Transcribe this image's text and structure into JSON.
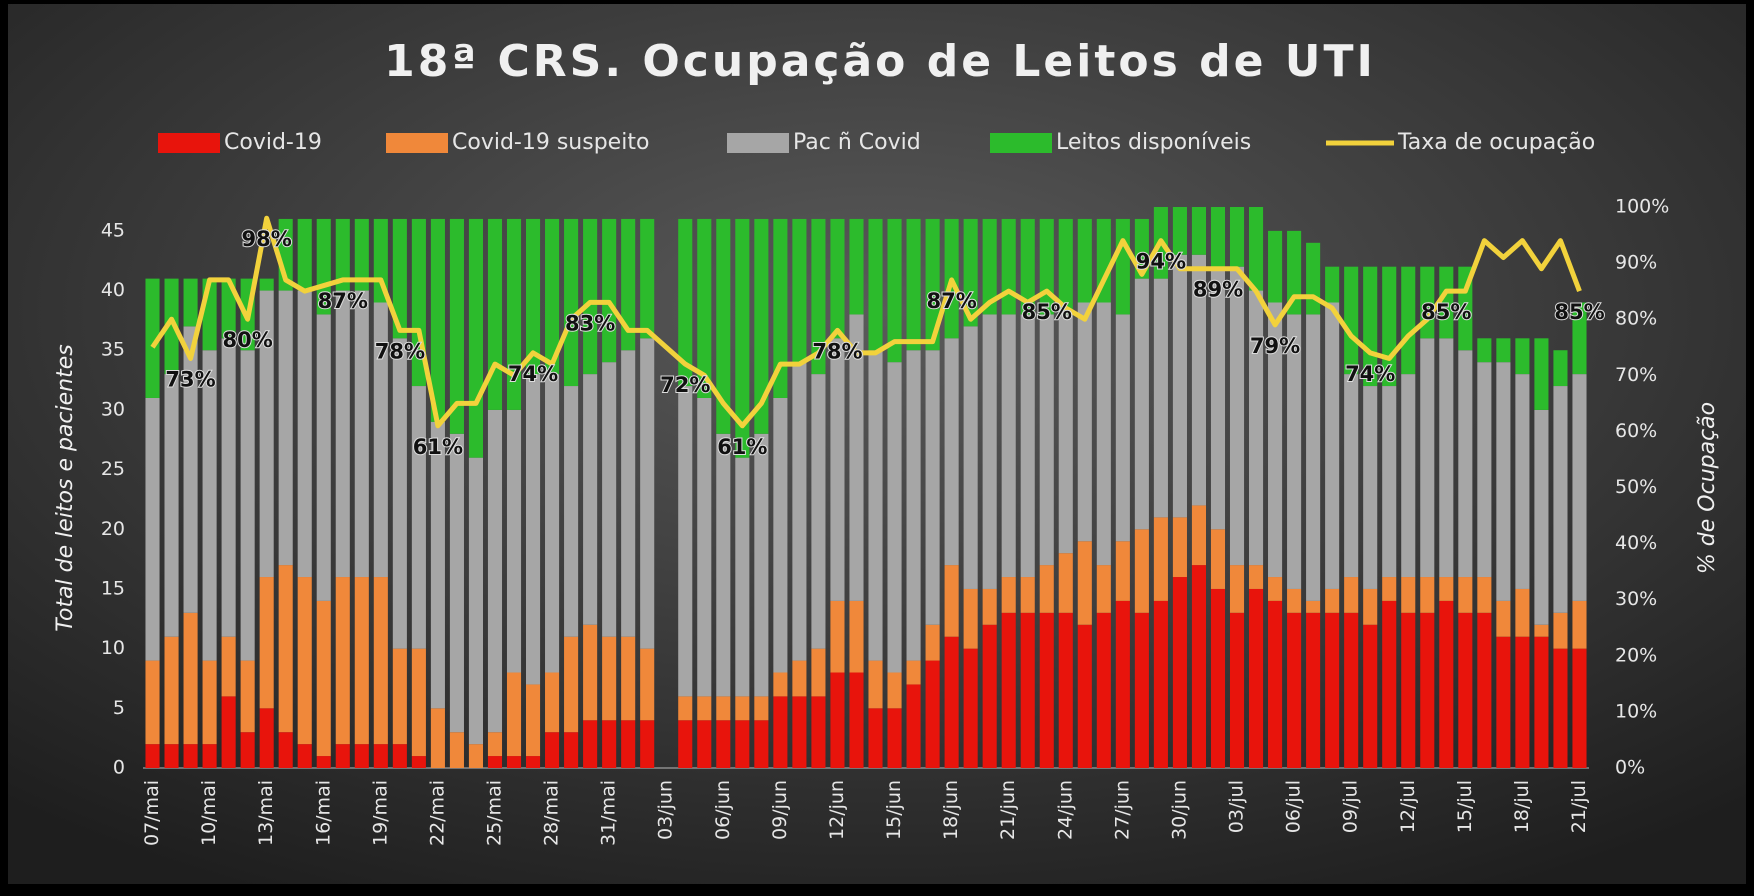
{
  "chart_data": {
    "type": "stacked_bar_line",
    "title": "18ª CRS. Ocupação de Leitos de UTI",
    "y_label": "Total de leitos e pacientes",
    "y2_label": "% de Ocupação",
    "categories": [
      "07/mai",
      null,
      null,
      "10/mai",
      null,
      null,
      "13/mai",
      null,
      null,
      "16/mai",
      null,
      null,
      "19/mai",
      null,
      null,
      "22/mai",
      null,
      null,
      "25/mai",
      null,
      null,
      "28/mai",
      null,
      null,
      "31/mai",
      null,
      null,
      "03/jun",
      null,
      null,
      "06/jun",
      null,
      null,
      "09/jun",
      null,
      null,
      "12/jun",
      null,
      null,
      "15/jun",
      null,
      null,
      "18/jun",
      null,
      null,
      "21/jun",
      null,
      null,
      "24/jun",
      null,
      null,
      "27/jun",
      null,
      null,
      "30/jun",
      null,
      null,
      "03/jul",
      null,
      null,
      "06/jul",
      null,
      null,
      "09/jul",
      null,
      null,
      "12/jul",
      null,
      null,
      "15/jul",
      null,
      null,
      "18/jul",
      null,
      null,
      "21/jul"
    ],
    "series": [
      {
        "name": "Covid-19",
        "color": "#e8140c",
        "values": [
          2,
          2,
          2,
          2,
          6,
          3,
          5,
          3,
          2,
          1,
          2,
          2,
          2,
          2,
          1,
          0,
          0,
          0,
          1,
          1,
          1,
          3,
          3,
          4,
          4,
          4,
          4,
          null,
          4,
          4,
          4,
          4,
          4,
          6,
          6,
          6,
          8,
          8,
          5,
          5,
          7,
          9,
          11,
          10,
          12,
          13,
          13,
          13,
          13,
          12,
          13,
          14,
          13,
          14,
          16,
          17,
          15,
          13,
          15,
          14,
          13,
          13,
          13,
          13,
          12,
          14,
          13,
          13,
          14,
          13,
          13,
          11,
          11,
          11,
          10,
          10
        ]
      },
      {
        "name": "Covid-19 suspeito",
        "color": "#f0883a",
        "values": [
          7,
          9,
          11,
          7,
          5,
          6,
          11,
          14,
          14,
          13,
          14,
          14,
          14,
          8,
          9,
          5,
          3,
          2,
          2,
          7,
          6,
          5,
          8,
          8,
          7,
          7,
          6,
          null,
          2,
          2,
          2,
          2,
          2,
          2,
          3,
          4,
          6,
          6,
          4,
          3,
          2,
          3,
          6,
          5,
          3,
          3,
          3,
          4,
          5,
          7,
          4,
          5,
          7,
          7,
          5,
          5,
          5,
          4,
          2,
          2,
          2,
          1,
          2,
          3,
          3,
          2,
          3,
          3,
          2,
          3,
          3,
          3,
          4,
          1,
          3,
          4
        ]
      },
      {
        "name": "Pac ñ Covid",
        "color": "#a6a6a6",
        "values": [
          22,
          22,
          24,
          26,
          25,
          26,
          24,
          23,
          24,
          24,
          24,
          24,
          23,
          26,
          22,
          24,
          25,
          24,
          27,
          22,
          26,
          25,
          21,
          21,
          23,
          24,
          26,
          null,
          26,
          25,
          22,
          20,
          22,
          23,
          25,
          23,
          22,
          24,
          26,
          26,
          26,
          23,
          19,
          22,
          23,
          22,
          22,
          21,
          20,
          20,
          22,
          19,
          21,
          20,
          22,
          21,
          22,
          25,
          23,
          23,
          23,
          24,
          24,
          17,
          17,
          16,
          17,
          20,
          20,
          19,
          18,
          20,
          18,
          18,
          19,
          19
        ]
      },
      {
        "name": "Leitos disponíveis",
        "color": "#2cbb2c",
        "values": [
          10,
          8,
          4,
          6,
          5,
          6,
          1,
          6,
          6,
          8,
          6,
          6,
          7,
          10,
          14,
          17,
          18,
          20,
          16,
          16,
          13,
          13,
          14,
          13,
          12,
          11,
          10,
          null,
          14,
          15,
          18,
          20,
          18,
          15,
          12,
          13,
          10,
          8,
          11,
          12,
          11,
          11,
          10,
          9,
          8,
          8,
          8,
          8,
          8,
          7,
          7,
          8,
          5,
          6,
          4,
          4,
          5,
          5,
          7,
          6,
          7,
          6,
          3,
          9,
          10,
          10,
          9,
          6,
          6,
          7,
          2,
          2,
          3,
          6,
          3,
          6
        ]
      },
      {
        "name": "Taxa de ocupação",
        "color": "#f2d23c",
        "axis": "y2",
        "values": [
          75,
          80,
          73,
          87,
          87,
          80,
          98,
          87,
          85,
          86,
          87,
          87,
          87,
          78,
          78,
          61,
          65,
          65,
          72,
          70,
          74,
          72,
          80,
          83,
          83,
          78,
          78,
          75,
          72,
          70,
          65,
          61,
          65,
          72,
          72,
          74,
          78,
          74,
          74,
          76,
          76,
          76,
          87,
          80,
          83,
          85,
          83,
          85,
          82,
          80,
          87,
          94,
          88,
          94,
          89,
          89,
          89,
          89,
          85,
          79,
          84,
          84,
          82,
          77,
          74,
          73,
          77,
          80,
          85,
          85,
          94,
          91,
          94,
          89,
          94,
          85
        ],
        "value_labels": [
          null,
          null,
          "73%",
          null,
          null,
          "80%",
          "98%",
          null,
          null,
          null,
          "87%",
          null,
          null,
          "78%",
          null,
          "61%",
          null,
          null,
          null,
          null,
          "74%",
          null,
          null,
          "83%",
          null,
          null,
          null,
          null,
          "72%",
          null,
          null,
          "61%",
          null,
          null,
          null,
          null,
          "78%",
          null,
          null,
          null,
          null,
          null,
          "87%",
          null,
          null,
          null,
          null,
          "85%",
          null,
          null,
          null,
          null,
          null,
          "94%",
          null,
          null,
          "89%",
          null,
          null,
          "79%",
          null,
          null,
          null,
          null,
          "74%",
          null,
          null,
          null,
          "85%",
          null,
          null,
          null,
          null,
          null,
          null,
          "85%"
        ]
      }
    ],
    "ylim": [
      0,
      47
    ],
    "yticks": [
      0,
      5,
      10,
      15,
      20,
      25,
      30,
      35,
      40,
      45
    ],
    "y2lim": [
      0,
      100
    ],
    "y2ticks": [
      {
        "value": 0,
        "label": "0%"
      },
      {
        "value": 10,
        "label": "10%"
      },
      {
        "value": 20,
        "label": "20%"
      },
      {
        "value": 30,
        "label": "30%"
      },
      {
        "value": 40,
        "label": "40%"
      },
      {
        "value": 50,
        "label": "50%"
      },
      {
        "value": 60,
        "label": "60%"
      },
      {
        "value": 70,
        "label": "70%"
      },
      {
        "value": 80,
        "label": "80%"
      },
      {
        "value": 90,
        "label": "90%"
      },
      {
        "value": 100,
        "label": "100%"
      }
    ],
    "grid": false
  }
}
